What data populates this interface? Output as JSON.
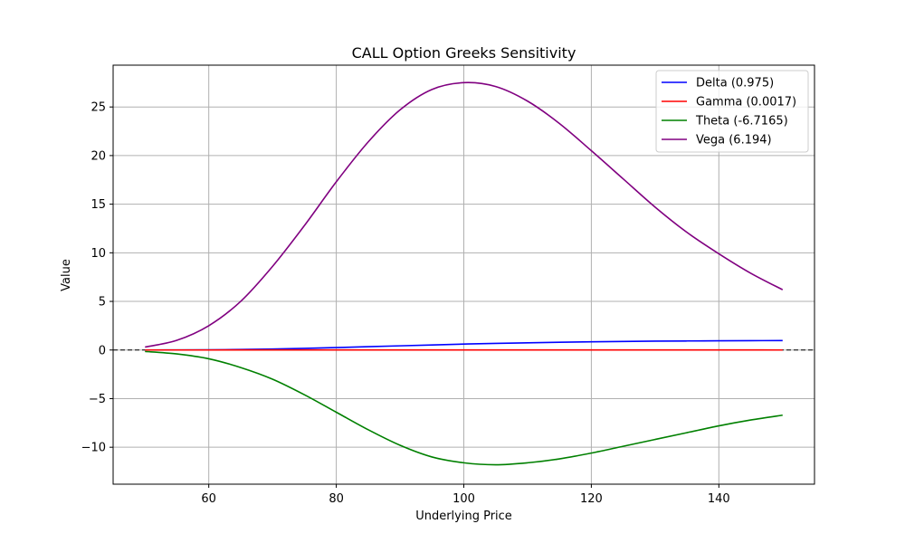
{
  "chart_data": {
    "type": "line",
    "title": "CALL Option Greeks Sensitivity",
    "xlabel": "Underlying Price",
    "ylabel": "Value",
    "xlim": [
      45,
      155
    ],
    "ylim": [
      -13.8,
      29.3
    ],
    "xticks": [
      60,
      80,
      100,
      120,
      140
    ],
    "yticks": [
      -10,
      -5,
      0,
      5,
      10,
      15,
      20,
      25
    ],
    "ytick_labels": [
      "−10",
      "−5",
      "0",
      "5",
      "10",
      "15",
      "20",
      "25"
    ],
    "grid": true,
    "legend_position": "top-right",
    "reference_line": {
      "y": 0,
      "style": "dashed",
      "color": "#000000"
    },
    "x": [
      50,
      55,
      60,
      65,
      70,
      75,
      80,
      85,
      90,
      95,
      100,
      105,
      110,
      115,
      120,
      125,
      130,
      135,
      140,
      145,
      150
    ],
    "series": [
      {
        "name": "Delta (0.975)",
        "color": "#0000ff",
        "values": [
          0.0,
          0.01,
          0.02,
          0.05,
          0.1,
          0.17,
          0.25,
          0.34,
          0.43,
          0.52,
          0.61,
          0.68,
          0.74,
          0.8,
          0.84,
          0.88,
          0.91,
          0.93,
          0.95,
          0.96,
          0.975
        ]
      },
      {
        "name": "Gamma (0.0017)",
        "color": "#ff0000",
        "values": [
          0.0001,
          0.0005,
          0.0012,
          0.0024,
          0.0039,
          0.0054,
          0.0067,
          0.0076,
          0.0081,
          0.0082,
          0.0079,
          0.0074,
          0.0067,
          0.006,
          0.0052,
          0.0045,
          0.0038,
          0.0032,
          0.0026,
          0.0021,
          0.0017
        ]
      },
      {
        "name": "Theta (-6.7165)",
        "color": "#008000",
        "values": [
          -0.15,
          -0.4,
          -0.9,
          -1.8,
          -3.0,
          -4.6,
          -6.4,
          -8.2,
          -9.8,
          -11.0,
          -11.6,
          -11.8,
          -11.6,
          -11.2,
          -10.6,
          -9.9,
          -9.2,
          -8.5,
          -7.8,
          -7.2,
          -6.7
        ]
      },
      {
        "name": "Vega (6.194)",
        "color": "#800080",
        "values": [
          0.3,
          1.0,
          2.5,
          5.0,
          8.6,
          12.8,
          17.3,
          21.4,
          24.7,
          26.8,
          27.5,
          27.1,
          25.6,
          23.3,
          20.5,
          17.6,
          14.7,
          12.1,
          9.9,
          7.9,
          6.2
        ]
      }
    ]
  }
}
